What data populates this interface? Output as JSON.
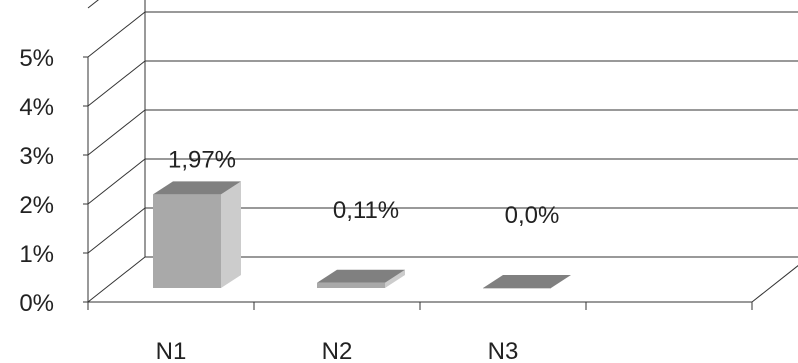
{
  "chart_data": {
    "type": "bar",
    "categories": [
      "N1",
      "N2",
      "N3"
    ],
    "values": [
      1.97,
      0.11,
      0.0
    ],
    "data_labels": [
      "1,97%",
      "0,11%",
      "0,0%"
    ],
    "y_ticks": [
      0,
      1,
      2,
      3,
      4,
      5
    ],
    "y_tick_labels": [
      "0%",
      "1%",
      "2%",
      "3%",
      "4%",
      "5%"
    ],
    "ylim": [
      0,
      5
    ],
    "grid": true,
    "legend": "none",
    "title": "",
    "xlabel": "",
    "ylabel": "",
    "colors": {
      "bar_front": "#a9a9a9",
      "bar_side": "#cccccc",
      "bar_top": "#808080",
      "grid": "#333333",
      "text": "#222222"
    }
  }
}
